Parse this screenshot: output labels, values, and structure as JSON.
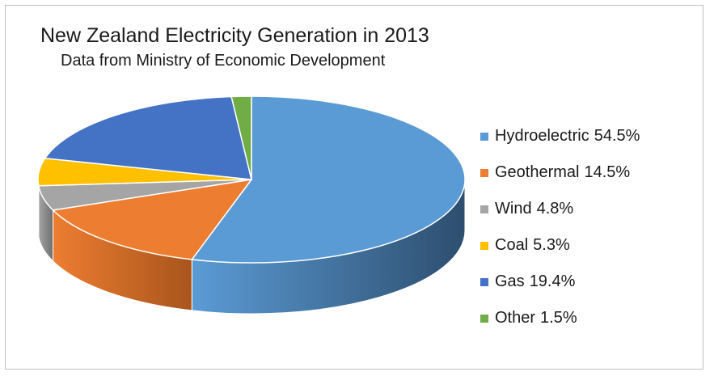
{
  "chart_data": {
    "type": "pie",
    "title": "New Zealand Electricity Generation  in 2013",
    "subtitle": "Data from Ministry of Economic Development",
    "three_d": true,
    "legend_position": "right",
    "slices": [
      {
        "label": "Hydroelectric",
        "value": 54.5,
        "value_text": "54.5%",
        "color": "#5b9bd5",
        "side_color": "#2d4e6e"
      },
      {
        "label": "Geothermal",
        "value": 14.5,
        "value_text": "14.5%",
        "color": "#ed7d31",
        "side_color": "#a8551c"
      },
      {
        "label": "Wind",
        "value": 4.8,
        "value_text": "4.8%",
        "color": "#a5a5a5",
        "side_color": "#6f6f6f"
      },
      {
        "label": "Coal",
        "value": 5.3,
        "value_text": "5.3%",
        "color": "#ffc000",
        "side_color": "#b08400"
      },
      {
        "label": "Gas",
        "value": 19.4,
        "value_text": "19.4%",
        "color": "#4472c4",
        "side_color": "#2a4a86"
      },
      {
        "label": "Other",
        "value": 1.5,
        "value_text": "1.5%",
        "color": "#70ad47",
        "side_color": "#4a7a2c"
      }
    ]
  }
}
